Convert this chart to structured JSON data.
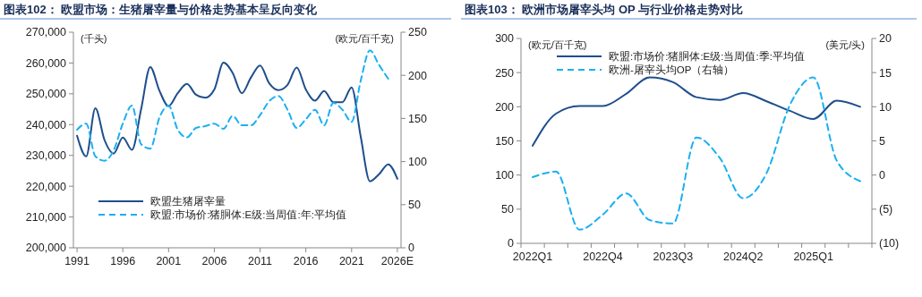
{
  "chart_data": [
    {
      "type": "line",
      "title": "图表102：  欧盟市场：生猪屠宰量与价格走势基本呈反向变化",
      "ylabel": "(千头)",
      "y2label": "(欧元/百千克)",
      "categories": [
        "1991",
        null,
        null,
        null,
        null,
        "1996",
        null,
        null,
        null,
        null,
        "2001",
        null,
        null,
        null,
        null,
        "2006",
        null,
        null,
        null,
        null,
        "2011",
        null,
        null,
        null,
        null,
        "2016",
        null,
        null,
        null,
        null,
        "2021",
        null,
        null,
        null,
        null,
        "2026E"
      ],
      "series": [
        {
          "name": "欧盟生猪屠宰量",
          "color": "#1f4e8c",
          "line_style": "solid",
          "values": [
            236400,
            229700,
            245300,
            235000,
            230600,
            235800,
            231800,
            245000,
            258700,
            251000,
            246000,
            250200,
            253200,
            249700,
            248700,
            251400,
            260100,
            256800,
            250200,
            255300,
            259200,
            253400,
            251200,
            252900,
            258500,
            251400,
            247800,
            250900,
            247300,
            247300,
            252100,
            236000,
            221600,
            223900,
            227100,
            222400
          ]
        },
        {
          "name": "欧盟:市场价:猪胴体:E级:当周值:年:平均值",
          "color": "#1ab0f0",
          "line_style": "dashed",
          "axis": "y2",
          "values": [
            137,
            144,
            106,
            101,
            113,
            144,
            165,
            120,
            115,
            151,
            165,
            137,
            128,
            139,
            141,
            144,
            138,
            153,
            142,
            142,
            154,
            170,
            176,
            160,
            139,
            149,
            160,
            142,
            168,
            160,
            146,
            194,
            229,
            212,
            196,
            null
          ]
        }
      ],
      "ylim": [
        200000,
        270000
      ],
      "yticks": [
        {
          "value": 200000,
          "label": "200,000"
        },
        {
          "value": 210000,
          "label": "210,000"
        },
        {
          "value": 220000,
          "label": "220,000"
        },
        {
          "value": 230000,
          "label": "230,000"
        },
        {
          "value": 240000,
          "label": "240,000"
        },
        {
          "value": 250000,
          "label": "250,000"
        },
        {
          "value": 260000,
          "label": "260,000"
        },
        {
          "value": 270000,
          "label": "270,000"
        }
      ],
      "y2lim": [
        0,
        250
      ],
      "y2ticks": [
        0,
        50,
        100,
        150,
        200,
        250
      ],
      "legend": "bottom left",
      "grid": false
    },
    {
      "type": "line",
      "title": "图表103：  欧洲市场屠宰头均 OP 与行业价格走势对比",
      "ylabel": "(欧元/百千克)",
      "y2label": "(美元/头)",
      "categories": [
        "2022Q1",
        null,
        null,
        "2022Q4",
        null,
        null,
        "2023Q3",
        null,
        null,
        "2024Q2",
        null,
        null,
        "2025Q1",
        null,
        null
      ],
      "series": [
        {
          "name": "欧盟:市场价:猪胴体:E级:当周值:季:平均值",
          "color": "#1f4e8c",
          "line_style": "solid",
          "values": [
            143,
            190,
            201,
            201,
            219,
            243,
            236,
            214,
            210,
            220,
            208,
            194,
            182,
            209,
            200
          ]
        },
        {
          "name": "欧洲-屠宰头均OP（右轴）",
          "color": "#1ab0f0",
          "line_style": "dashed",
          "axis": "y2",
          "values": [
            -0.3,
            0.5,
            -8.0,
            -5.8,
            -2.7,
            -6.6,
            -7.1,
            5.5,
            2.5,
            -3.4,
            0.3,
            10.3,
            14.3,
            2.1,
            -0.9
          ]
        }
      ],
      "ylim": [
        0,
        300
      ],
      "yticks": [
        0,
        50,
        100,
        150,
        200,
        250,
        300
      ],
      "y2lim": [
        -10,
        20
      ],
      "y2ticks": [
        {
          "value": -10,
          "label": "(10)"
        },
        {
          "value": -5,
          "label": "(5)"
        },
        0,
        5,
        10,
        15,
        20
      ],
      "legend": "top",
      "grid": false
    }
  ]
}
